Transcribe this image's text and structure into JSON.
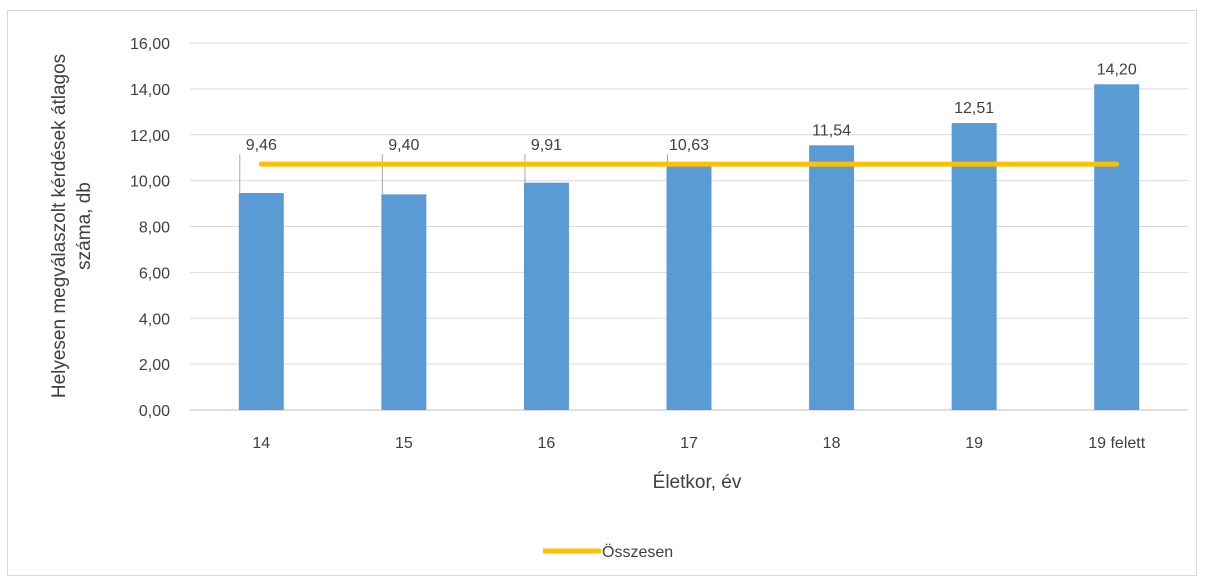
{
  "chart_data": {
    "type": "bar",
    "title": "",
    "xlabel": "Életkor, év",
    "ylabel_lines": [
      "Helyesen megválaszolt kérdések átlagos",
      "száma, db"
    ],
    "ylim": [
      0,
      16
    ],
    "yticks": [
      "0,00",
      "2,00",
      "4,00",
      "6,00",
      "8,00",
      "10,00",
      "12,00",
      "14,00",
      "16,00"
    ],
    "ytick_values": [
      0,
      2,
      4,
      6,
      8,
      10,
      12,
      14,
      16
    ],
    "grid": true,
    "categories": [
      "14",
      "15",
      "16",
      "17",
      "18",
      "19",
      "19 felett"
    ],
    "values": [
      9.46,
      9.4,
      9.91,
      10.63,
      11.54,
      12.51,
      14.2
    ],
    "value_labels": [
      "9,46",
      "9,40",
      "9,91",
      "10,63",
      "11,54",
      "12,51",
      "14,20"
    ],
    "bar_color": "#5b9bd5",
    "line_series": {
      "name": "Összesen",
      "value": 10.72,
      "color": "#ffc000"
    },
    "legend_position": "bottom"
  }
}
